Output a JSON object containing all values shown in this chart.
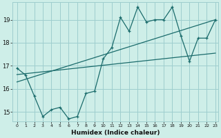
{
  "xlabel": "Humidex (Indice chaleur)",
  "bg_color": "#ceeee8",
  "grid_color": "#9ecece",
  "line_color": "#1a6b6b",
  "x_min": -0.5,
  "x_max": 23.3,
  "y_min": 14.6,
  "y_max": 19.75,
  "x_ticks": [
    0,
    1,
    2,
    3,
    4,
    5,
    6,
    7,
    8,
    9,
    10,
    11,
    12,
    13,
    14,
    15,
    16,
    17,
    18,
    19,
    20,
    21,
    22,
    23
  ],
  "y_ticks": [
    15,
    16,
    17,
    18,
    19
  ],
  "noisy_x": [
    0,
    1,
    2,
    3,
    4,
    5,
    6,
    7,
    8,
    9,
    10,
    11,
    12,
    13,
    14,
    15,
    16,
    17,
    18,
    19,
    20,
    21,
    22,
    23
  ],
  "noisy_y": [
    16.9,
    16.6,
    15.7,
    14.8,
    15.1,
    15.2,
    14.7,
    14.8,
    15.8,
    15.9,
    17.3,
    17.8,
    19.1,
    18.5,
    19.55,
    18.9,
    19.0,
    19.0,
    19.55,
    18.3,
    17.2,
    18.2,
    18.2,
    19.0
  ],
  "trend1_x": [
    0,
    23
  ],
  "trend1_y": [
    16.62,
    17.55
  ],
  "trend2_x": [
    0,
    23
  ],
  "trend2_y": [
    16.3,
    19.0
  ]
}
